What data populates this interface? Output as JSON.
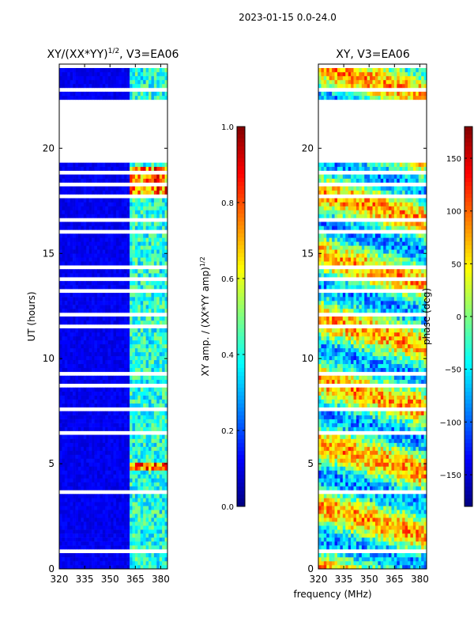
{
  "figure": {
    "suptitle": "2023-01-15 0.0-24.0",
    "shared_xlabel": "frequency (MHz)"
  },
  "chart_data": [
    {
      "type": "heatmap",
      "title_base": "XY/(XX*YY)",
      "title_sup": "1/2",
      "title_tail": ", V3=EA06",
      "xlabel": "frequency (MHz)",
      "ylabel": "UT (hours)",
      "xlim": [
        320,
        384
      ],
      "ylim": [
        0,
        24
      ],
      "xticks": [
        320,
        335,
        350,
        365,
        380
      ],
      "yticks": [
        0,
        5,
        10,
        15,
        20
      ],
      "colorbar": {
        "label_base": "XY amp. / (XX*YY amp)",
        "label_sup": "1/2",
        "range": [
          0.0,
          1.0
        ],
        "ticks": [
          "0.0",
          "0.2",
          "0.4",
          "0.6",
          "0.8",
          "1.0"
        ],
        "colormap": "jet"
      },
      "data_gaps_hours": [
        [
          19.3,
          22.0
        ]
      ],
      "notes": "Low amplitude (~0.05) below 361 MHz; speckled 0.3-0.5 in 361-384 MHz with bright streaks near 18 h and 4.8 h"
    },
    {
      "type": "heatmap",
      "title": "XY, V3=EA06",
      "xlabel": "frequency (MHz)",
      "ylabel": "",
      "xlim": [
        320,
        384
      ],
      "ylim": [
        0,
        24
      ],
      "xticks": [
        320,
        335,
        350,
        365,
        380
      ],
      "yticks": [
        0,
        5,
        10,
        15,
        20
      ],
      "colorbar": {
        "label": "phase (deg)",
        "range": [
          -180,
          180
        ],
        "ticks": [
          "-150",
          "-100",
          "-50",
          "0",
          "50",
          "100",
          "150"
        ],
        "colormap": "jet"
      },
      "data_gaps_hours": [
        [
          19.3,
          22.0
        ]
      ],
      "notes": "Banded phase varying with time; noisier structure across all channels"
    }
  ],
  "colors": {
    "background": "#ffffff",
    "axes": "#000000",
    "gap": "#ffffff",
    "low_value": "#00007f"
  }
}
